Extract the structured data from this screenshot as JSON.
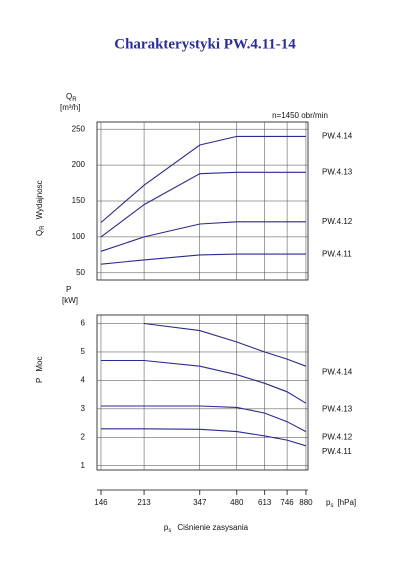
{
  "chart_data": [
    {
      "type": "line",
      "title": "Charakterystyki PW.4.11-14",
      "annotation": "n=1450 obr/min",
      "y_symbol": "Q",
      "y_symbol_sub": "R",
      "y_unit": "[m³/h]",
      "y_label": "Wydajnosc",
      "x": [
        146,
        213,
        347,
        480,
        613,
        746,
        880
      ],
      "series": [
        {
          "name": "PW.4.14",
          "color": "#2b2b8f",
          "values": [
            120,
            172,
            228,
            240,
            240,
            240,
            240
          ]
        },
        {
          "name": "PW.4.13",
          "color": "#2b2b8f",
          "values": [
            100,
            145,
            188,
            190,
            190,
            190,
            190
          ]
        },
        {
          "name": "PW.4.12",
          "color": "#2b2b8f",
          "values": [
            80,
            100,
            118,
            121,
            121,
            121,
            121
          ]
        },
        {
          "name": "PW.4.11",
          "color": "#2b2b8f",
          "values": [
            62,
            68,
            75,
            76,
            76,
            76,
            76
          ]
        }
      ],
      "xlim": [
        141,
        896
      ],
      "xticks": [
        146,
        213,
        347,
        480,
        613,
        746,
        880
      ],
      "x_log": true,
      "ylim": [
        40,
        260
      ],
      "yticks": [
        50,
        100,
        150,
        200,
        250
      ],
      "grid": true
    },
    {
      "type": "line",
      "y_symbol": "P",
      "y_unit": "[kW]",
      "y_label": "Moc",
      "x_symbol": "p",
      "x_symbol_sub": "s",
      "x_unit": "[hPa]",
      "x_label": "Ciśnienie zasysania",
      "x": [
        146,
        213,
        347,
        480,
        613,
        746,
        880
      ],
      "series": [
        {
          "name": "PW.4.14",
          "color": "#2b2b8f",
          "values": [
            null,
            6.0,
            5.75,
            5.35,
            5.0,
            4.75,
            4.5
          ]
        },
        {
          "name": "PW.4.13",
          "color": "#2b2b8f",
          "values": [
            4.7,
            4.7,
            4.5,
            4.2,
            3.9,
            3.6,
            3.2
          ]
        },
        {
          "name": "PW.4.12",
          "color": "#2b2b8f",
          "values": [
            3.1,
            3.1,
            3.1,
            3.05,
            2.85,
            2.55,
            2.2
          ]
        },
        {
          "name": "PW.4.11",
          "color": "#2b2b8f",
          "values": [
            2.3,
            2.3,
            2.28,
            2.2,
            2.05,
            1.9,
            1.7
          ]
        }
      ],
      "xlim": [
        141,
        896
      ],
      "xticks": [
        146,
        213,
        347,
        480,
        613,
        746,
        880
      ],
      "x_log": true,
      "ylim": [
        0.85,
        6.3
      ],
      "yticks": [
        1,
        2,
        3,
        4,
        5,
        6
      ],
      "grid": true
    }
  ]
}
